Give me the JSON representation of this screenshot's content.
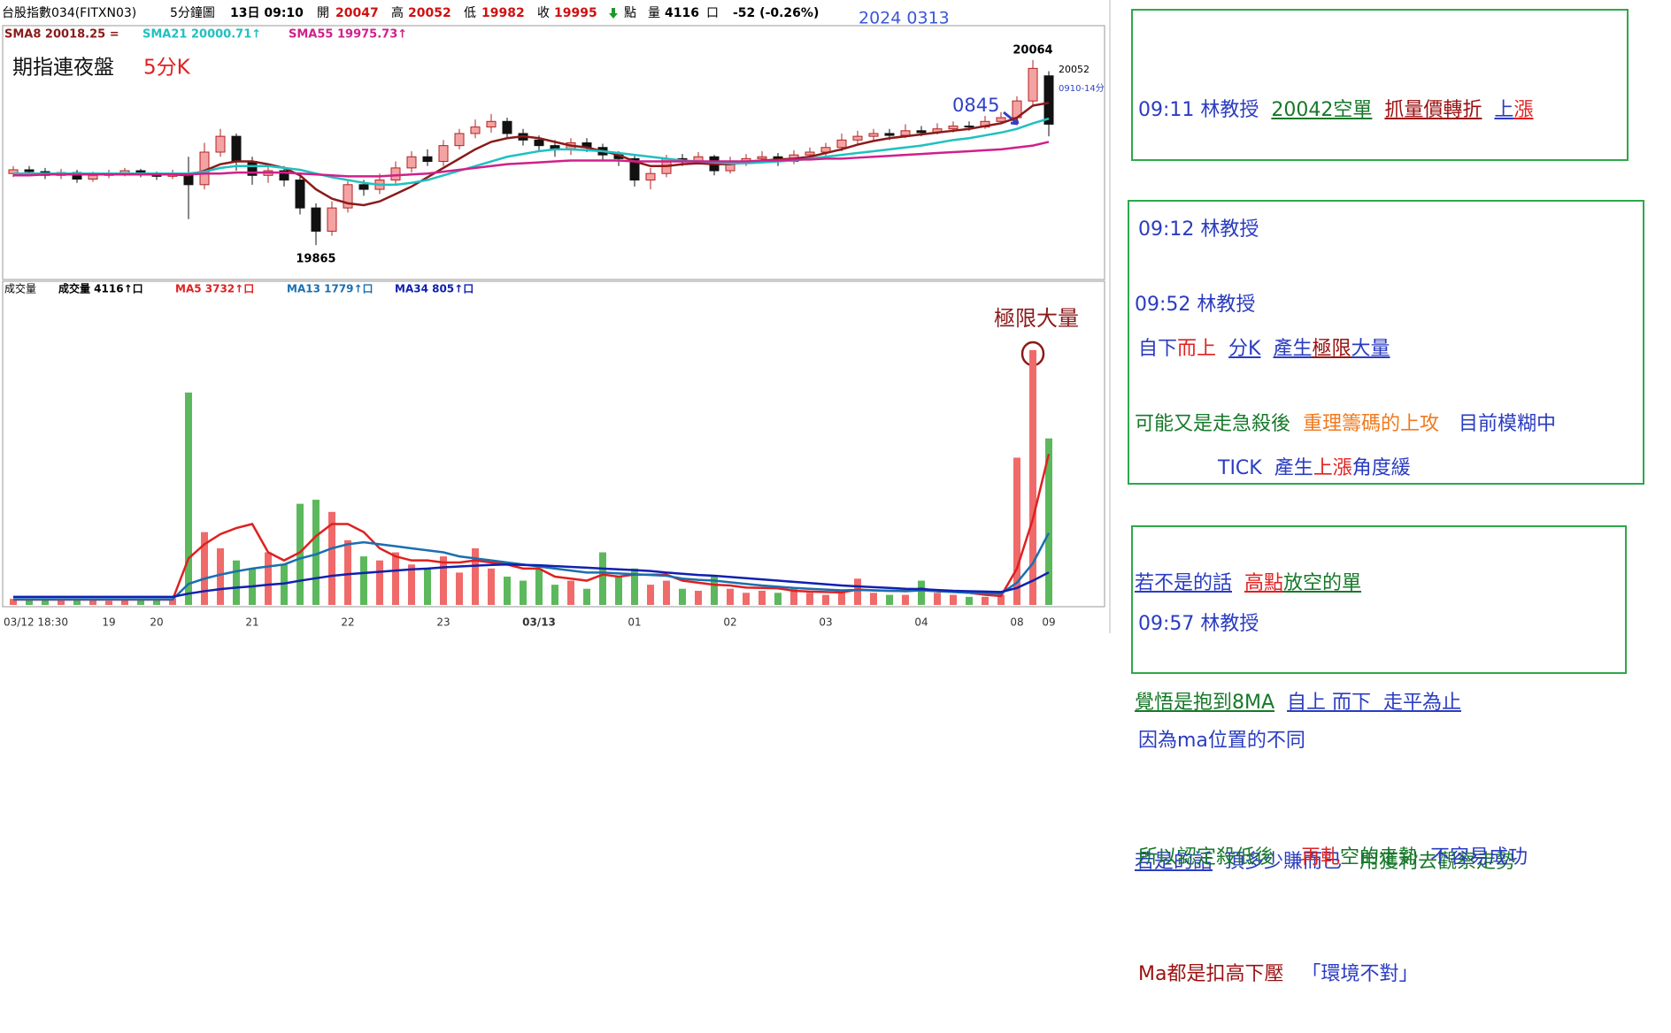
{
  "header": {
    "symbol": "台股指數034(FITXN03)",
    "period": "5分鐘圖",
    "time": "13日 09:10",
    "open_label": "開",
    "open": 20047,
    "high_label": "高",
    "high": 20052,
    "low_label": "低",
    "low": 19982,
    "close_label": "收",
    "close": 19995,
    "point_label": "點",
    "volume_label": "量",
    "volume": 4116,
    "volume_unit": "口",
    "change": "-52 (-0.26%)",
    "date": "2024 0313"
  },
  "chart_data": [
    {
      "type": "candlestick",
      "up_color": "#f4a3a3",
      "up_edge": "#b22222",
      "down_color": "#111111",
      "ylim": [
        19830,
        20100
      ],
      "annotations": [
        "期指連夜盤",
        "5分K",
        "20064",
        "20052",
        "19865",
        "0845",
        "0910-14分"
      ],
      "open": [
        19942,
        19946,
        19944,
        19940,
        19943,
        19936,
        19940,
        19942,
        19945,
        19941,
        19939,
        19942,
        19930,
        19965,
        19982,
        19955,
        19940,
        19945,
        19935,
        19905,
        19880,
        19905,
        19930,
        19925,
        19935,
        19948,
        19960,
        19955,
        19972,
        19985,
        19992,
        19998,
        19985,
        19978,
        19972,
        19968,
        19975,
        19970,
        19962,
        19958,
        19935,
        19942,
        19958,
        19955,
        19960,
        19945,
        19955,
        19958,
        19960,
        19955,
        19962,
        19965,
        19970,
        19978,
        19982,
        19985,
        19983,
        19988,
        19986,
        19990,
        19993,
        19992,
        19998,
        20002,
        20020,
        20047
      ],
      "high": [
        19950,
        19950,
        19948,
        19947,
        19946,
        19944,
        19946,
        19948,
        19947,
        19944,
        19946,
        19960,
        19975,
        19990,
        19985,
        19960,
        19952,
        19950,
        19940,
        19910,
        19912,
        19936,
        19935,
        19942,
        19955,
        19966,
        19968,
        19978,
        19990,
        20000,
        20006,
        20002,
        19990,
        19983,
        19978,
        19980,
        19980,
        19974,
        19966,
        19962,
        19948,
        19962,
        19963,
        19965,
        19962,
        19960,
        19963,
        19966,
        19964,
        19967,
        19970,
        19975,
        19985,
        19988,
        19990,
        19990,
        19995,
        19993,
        19996,
        19998,
        19998,
        20004,
        20008,
        20025,
        20064,
        20052
      ],
      "low": [
        19938,
        19940,
        19936,
        19936,
        19932,
        19933,
        19937,
        19939,
        19938,
        19935,
        19936,
        19893,
        19925,
        19960,
        19945,
        19930,
        19932,
        19928,
        19898,
        19865,
        19875,
        19900,
        19918,
        19920,
        19930,
        19943,
        19950,
        19950,
        19968,
        19980,
        19986,
        19980,
        19972,
        19965,
        19960,
        19962,
        19965,
        19956,
        19950,
        19928,
        19925,
        19938,
        19950,
        19952,
        19940,
        19942,
        19950,
        19954,
        19950,
        19952,
        19958,
        19960,
        19966,
        19974,
        19978,
        19978,
        19980,
        19982,
        19984,
        19986,
        19988,
        19990,
        19995,
        19998,
        20015,
        19982
      ],
      "close": [
        19946,
        19944,
        19940,
        19943,
        19936,
        19940,
        19942,
        19945,
        19941,
        19939,
        19942,
        19930,
        19965,
        19982,
        19955,
        19940,
        19945,
        19935,
        19905,
        19880,
        19905,
        19930,
        19925,
        19935,
        19948,
        19960,
        19955,
        19972,
        19985,
        19992,
        19998,
        19985,
        19978,
        19972,
        19968,
        19975,
        19970,
        19962,
        19958,
        19935,
        19942,
        19958,
        19955,
        19960,
        19945,
        19955,
        19958,
        19960,
        19955,
        19962,
        19965,
        19970,
        19978,
        19982,
        19985,
        19983,
        19988,
        19986,
        19990,
        19993,
        19992,
        19998,
        20002,
        20020,
        20055,
        19995
      ],
      "series": [
        {
          "name": "SMA8 20018.25 =",
          "color": "#8b1a1a",
          "values": [
            19942,
            19942,
            19942,
            19942,
            19942,
            19941,
            19941,
            19941,
            19941,
            19941,
            19941,
            19940,
            19945,
            19952,
            19955,
            19955,
            19952,
            19948,
            19940,
            19925,
            19915,
            19910,
            19908,
            19912,
            19920,
            19928,
            19938,
            19948,
            19958,
            19968,
            19976,
            19980,
            19982,
            19980,
            19976,
            19972,
            19970,
            19966,
            19962,
            19955,
            19950,
            19950,
            19952,
            19953,
            19952,
            19952,
            19954,
            19956,
            19957,
            19958,
            19960,
            19964,
            19968,
            19973,
            19977,
            19980,
            19982,
            19984,
            19986,
            19988,
            19990,
            19993,
            19996,
            20002,
            20015,
            20018
          ]
        },
        {
          "name": "SMA21 20000.71↑",
          "color": "#20c0c0",
          "values": [
            19942,
            19942,
            19942,
            19942,
            19942,
            19942,
            19942,
            19942,
            19942,
            19942,
            19942,
            19942,
            19944,
            19948,
            19950,
            19950,
            19950,
            19948,
            19946,
            19942,
            19938,
            19935,
            19932,
            19930,
            19930,
            19932,
            19935,
            19940,
            19945,
            19950,
            19955,
            19960,
            19963,
            19966,
            19968,
            19968,
            19967,
            19966,
            19964,
            19962,
            19960,
            19958,
            19956,
            19955,
            19954,
            19953,
            19953,
            19954,
            19955,
            19956,
            19958,
            19960,
            19962,
            19964,
            19966,
            19968,
            19970,
            19972,
            19975,
            19978,
            19980,
            19983,
            19986,
            19990,
            19996,
            20001
          ]
        },
        {
          "name": "SMA55 19975.73↑",
          "color": "#d0208a",
          "values": [
            19940,
            19940,
            19941,
            19941,
            19941,
            19941,
            19941,
            19941,
            19941,
            19941,
            19941,
            19941,
            19942,
            19942,
            19943,
            19943,
            19943,
            19943,
            19942,
            19941,
            19940,
            19939,
            19939,
            19939,
            19940,
            19941,
            19942,
            19944,
            19946,
            19948,
            19950,
            19952,
            19953,
            19954,
            19955,
            19956,
            19956,
            19956,
            19956,
            19955,
            19955,
            19955,
            19955,
            19955,
            19955,
            19955,
            19955,
            19956,
            19956,
            19957,
            19957,
            19958,
            19958,
            19959,
            19960,
            19961,
            19962,
            19963,
            19964,
            19965,
            19966,
            19967,
            19968,
            19970,
            19972,
            19976
          ]
        }
      ]
    },
    {
      "type": "bar",
      "title": "成交量",
      "ylim": [
        0,
        8000
      ],
      "annotation": "極限大量",
      "categories": [
        "03/12 18:30",
        null,
        null,
        null,
        null,
        null,
        "19",
        null,
        null,
        "20",
        null,
        null,
        null,
        null,
        null,
        "21",
        null,
        null,
        null,
        null,
        null,
        "22",
        null,
        null,
        null,
        null,
        null,
        "23",
        null,
        null,
        null,
        null,
        null,
        "03/13",
        null,
        null,
        null,
        null,
        null,
        "01",
        null,
        null,
        null,
        null,
        null,
        "02",
        null,
        null,
        null,
        null,
        null,
        "03",
        null,
        null,
        null,
        null,
        null,
        "04",
        null,
        null,
        null,
        null,
        null,
        "08",
        null,
        "09"
      ],
      "series": [
        {
          "name": "成交量 4116↑口",
          "up_color": "#f06a6a",
          "down_color": "#5cb85c",
          "values": [
            150,
            120,
            130,
            110,
            140,
            120,
            100,
            130,
            120,
            140,
            160,
            5250,
            1800,
            1400,
            1100,
            900,
            1300,
            1000,
            2500,
            2600,
            2300,
            1600,
            1200,
            1100,
            1300,
            1000,
            900,
            1200,
            800,
            1400,
            900,
            700,
            600,
            900,
            500,
            600,
            400,
            1300,
            700,
            900,
            500,
            600,
            400,
            350,
            700,
            400,
            300,
            350,
            300,
            400,
            300,
            250,
            300,
            650,
            300,
            250,
            250,
            600,
            300,
            250,
            200,
            200,
            250,
            3640,
            6300,
            4116
          ]
        },
        {
          "name": "MA5 3732↑口",
          "color": "#e02020",
          "values": [
            130,
            130,
            130,
            130,
            130,
            130,
            130,
            130,
            130,
            130,
            130,
            1150,
            1500,
            1750,
            1900,
            2000,
            1300,
            1100,
            1300,
            1700,
            2000,
            2000,
            1800,
            1400,
            1200,
            1100,
            1100,
            1050,
            1050,
            1100,
            1050,
            1000,
            900,
            900,
            700,
            650,
            600,
            750,
            700,
            750,
            750,
            750,
            600,
            550,
            500,
            480,
            430,
            420,
            410,
            350,
            330,
            320,
            310,
            380,
            360,
            350,
            350,
            410,
            340,
            330,
            300,
            250,
            220,
            900,
            2120,
            3732
          ]
        },
        {
          "name": "MA13 1779↑口",
          "color": "#1a6fb0",
          "values": [
            140,
            140,
            140,
            140,
            140,
            140,
            140,
            140,
            140,
            140,
            140,
            520,
            650,
            750,
            830,
            900,
            950,
            1000,
            1150,
            1250,
            1400,
            1500,
            1550,
            1500,
            1450,
            1400,
            1350,
            1300,
            1200,
            1150,
            1100,
            1050,
            1000,
            950,
            900,
            850,
            800,
            800,
            780,
            760,
            740,
            720,
            650,
            620,
            600,
            560,
            520,
            480,
            450,
            420,
            400,
            380,
            360,
            370,
            360,
            350,
            340,
            360,
            340,
            320,
            300,
            290,
            280,
            550,
            1030,
            1779
          ]
        },
        {
          "name": "MA34 805↑口",
          "color": "#1020b0",
          "values": [
            200,
            200,
            200,
            200,
            200,
            200,
            200,
            200,
            200,
            200,
            200,
            280,
            340,
            390,
            430,
            460,
            500,
            530,
            600,
            660,
            720,
            760,
            790,
            820,
            850,
            880,
            900,
            930,
            950,
            970,
            990,
            1000,
            990,
            980,
            960,
            940,
            920,
            900,
            880,
            860,
            840,
            800,
            770,
            740,
            720,
            690,
            660,
            630,
            600,
            570,
            540,
            510,
            480,
            460,
            440,
            420,
            400,
            390,
            370,
            350,
            340,
            330,
            320,
            420,
            600,
            805
          ]
        }
      ]
    }
  ],
  "notes": [
    {
      "lines": [
        [
          "09:11 林教授",
          "20042空單",
          "抓量價轉折",
          "上",
          "漲"
        ],
        [
          "09:12 林教授"
        ],
        [
          "自下",
          "而上",
          "分K",
          "產生",
          "極限",
          "大量"
        ],
        [
          "TICK  產生",
          "上漲",
          "角度緩"
        ]
      ]
    },
    {
      "lines": [
        [
          "09:52 林教授"
        ],
        [
          "可能又是走急殺後",
          "重理籌碼的上攻",
          "目前模糊中"
        ],
        [
          "若不是的話",
          "高點",
          "放空的單"
        ],
        [
          "覺悟是抱到8MA",
          "自上 而下  走平為止"
        ],
        [
          "若是的話",
          "頂多少賺而已",
          "用獲利去觀察走勢"
        ]
      ]
    },
    {
      "lines": [
        [
          "09:57 林教授"
        ],
        [
          "因為ma位置的不同"
        ],
        [
          "所以認定殺低後",
          "再軋",
          "空的走勢",
          "不容易成功"
        ],
        [
          "Ma都是扣高下壓",
          "「環境不對」"
        ]
      ]
    }
  ]
}
